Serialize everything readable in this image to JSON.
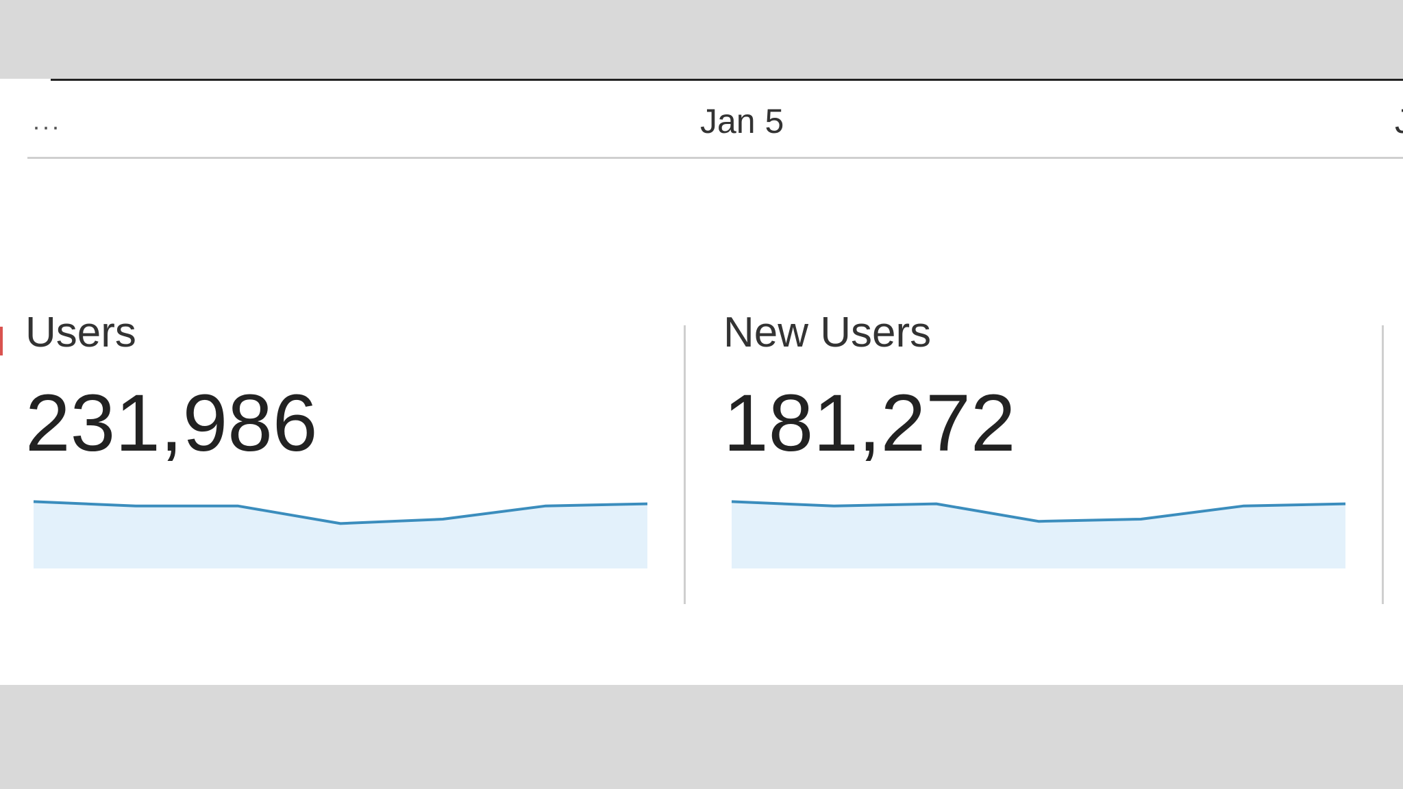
{
  "timeline": {
    "ellipsis": "...",
    "date": "Jan 5",
    "edge_glyph": "J"
  },
  "metrics": [
    {
      "label": "Users",
      "value": "231,986",
      "trend": [
        68,
        66,
        66,
        58,
        60,
        66,
        67
      ]
    },
    {
      "label": "New Users",
      "value": "181,272",
      "trend": [
        68,
        66,
        67,
        59,
        60,
        66,
        67
      ]
    }
  ],
  "colors": {
    "sparkline_line": "#3b8dbd",
    "sparkline_fill": "#e3f1fb",
    "accent_mark": "#d9534f"
  }
}
